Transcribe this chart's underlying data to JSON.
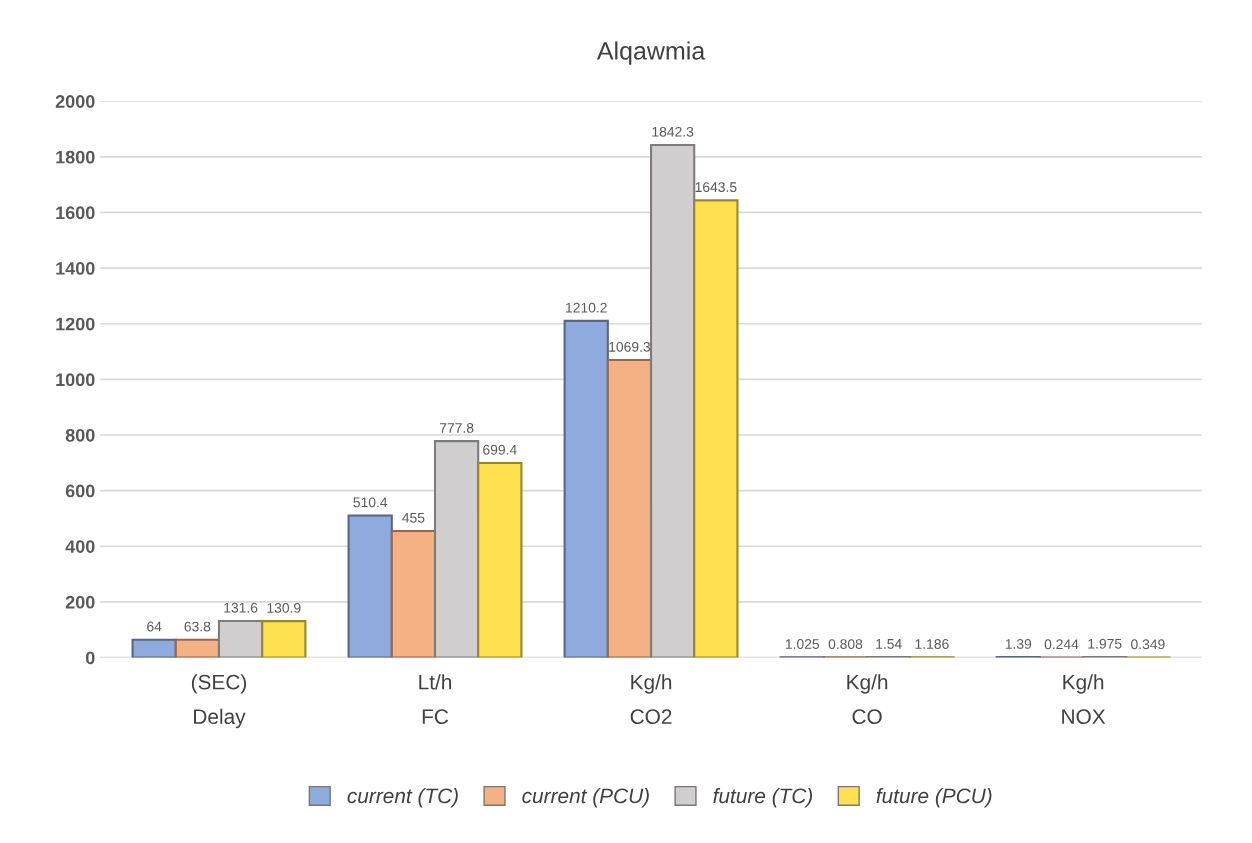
{
  "chart_data": {
    "type": "bar",
    "title": "Alqawmia",
    "categories": [
      "(SEC)\nDelay",
      "Lt/h\nFC",
      "Kg/h\nCO2",
      "Kg/h\nCO",
      "Kg/h\nNOX"
    ],
    "series": [
      {
        "name": "current (TC)",
        "color": "#8faadc",
        "values": [
          64,
          510.4,
          1210.2,
          1.025,
          1.39
        ]
      },
      {
        "name": "current (PCU)",
        "color": "#f4b183",
        "values": [
          63.8,
          455,
          1069.3,
          0.808,
          0.244
        ]
      },
      {
        "name": "future (TC)",
        "color": "#d0cece",
        "values": [
          131.6,
          777.8,
          1842.3,
          1.54,
          1.975
        ]
      },
      {
        "name": "future (PCU)",
        "color": "#ffe14f",
        "values": [
          130.9,
          699.4,
          1643.5,
          1.186,
          0.349
        ]
      }
    ],
    "ylim": [
      0,
      2000
    ],
    "yticks": [
      0,
      200,
      400,
      600,
      800,
      1000,
      1200,
      1400,
      1600,
      1800,
      2000
    ],
    "grid": "y",
    "legend": "bottom",
    "data_labels": true
  }
}
